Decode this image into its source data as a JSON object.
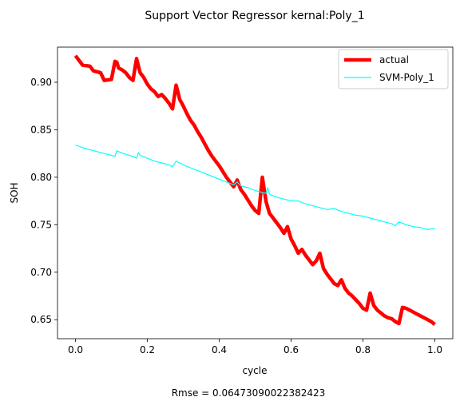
{
  "chart_data": {
    "type": "line",
    "title": "Support Vector Regressor kernal:Poly_1",
    "xlabel": "cycle",
    "ylabel": "SOH",
    "footer": "Rmse = 0.06473090022382423",
    "xlim": [
      -0.05,
      1.05
    ],
    "ylim": [
      0.63,
      0.937
    ],
    "xticks": [
      0.0,
      0.2,
      0.4,
      0.6,
      0.8,
      1.0
    ],
    "xtick_labels": [
      "0.0",
      "0.2",
      "0.4",
      "0.6",
      "0.8",
      "1.0"
    ],
    "yticks": [
      0.65,
      0.7,
      0.75,
      0.8,
      0.85,
      0.9
    ],
    "ytick_labels": [
      "0.65",
      "0.70",
      "0.75",
      "0.80",
      "0.85",
      "0.90"
    ],
    "grid": false,
    "legend_position": "top-right",
    "series": [
      {
        "name": "actual",
        "color": "#ff0000",
        "x": [
          0.0,
          0.02,
          0.04,
          0.05,
          0.07,
          0.08,
          0.1,
          0.11,
          0.115,
          0.12,
          0.13,
          0.14,
          0.15,
          0.16,
          0.17,
          0.175,
          0.18,
          0.19,
          0.2,
          0.21,
          0.22,
          0.23,
          0.24,
          0.25,
          0.26,
          0.27,
          0.28,
          0.285,
          0.29,
          0.3,
          0.31,
          0.32,
          0.33,
          0.34,
          0.35,
          0.36,
          0.37,
          0.38,
          0.39,
          0.4,
          0.41,
          0.42,
          0.43,
          0.44,
          0.45,
          0.46,
          0.47,
          0.48,
          0.49,
          0.5,
          0.51,
          0.52,
          0.53,
          0.535,
          0.54,
          0.55,
          0.56,
          0.57,
          0.58,
          0.59,
          0.6,
          0.61,
          0.62,
          0.63,
          0.64,
          0.65,
          0.66,
          0.67,
          0.68,
          0.69,
          0.7,
          0.71,
          0.72,
          0.73,
          0.74,
          0.75,
          0.76,
          0.77,
          0.78,
          0.79,
          0.8,
          0.81,
          0.82,
          0.83,
          0.84,
          0.85,
          0.86,
          0.87,
          0.88,
          0.89,
          0.9,
          0.91,
          0.92,
          0.93,
          0.94,
          0.95,
          0.96,
          0.97,
          0.98,
          0.99,
          1.0
        ],
        "y": [
          0.928,
          0.918,
          0.917,
          0.912,
          0.91,
          0.902,
          0.903,
          0.922,
          0.921,
          0.915,
          0.913,
          0.91,
          0.905,
          0.902,
          0.925,
          0.917,
          0.91,
          0.905,
          0.898,
          0.893,
          0.89,
          0.885,
          0.887,
          0.883,
          0.878,
          0.872,
          0.897,
          0.89,
          0.882,
          0.875,
          0.867,
          0.86,
          0.855,
          0.848,
          0.842,
          0.835,
          0.828,
          0.822,
          0.817,
          0.812,
          0.806,
          0.8,
          0.795,
          0.79,
          0.797,
          0.787,
          0.782,
          0.776,
          0.77,
          0.765,
          0.762,
          0.8,
          0.775,
          0.768,
          0.762,
          0.757,
          0.752,
          0.747,
          0.741,
          0.748,
          0.735,
          0.728,
          0.72,
          0.724,
          0.718,
          0.713,
          0.708,
          0.712,
          0.72,
          0.704,
          0.698,
          0.693,
          0.688,
          0.686,
          0.692,
          0.683,
          0.678,
          0.675,
          0.671,
          0.667,
          0.662,
          0.66,
          0.678,
          0.665,
          0.66,
          0.657,
          0.654,
          0.652,
          0.651,
          0.648,
          0.646,
          0.663,
          0.662,
          0.66,
          0.658,
          0.656,
          0.654,
          0.652,
          0.65,
          0.648,
          0.645
        ]
      },
      {
        "name": "SVM-Poly_1",
        "color": "#00ffff",
        "x": [
          0.0,
          0.02,
          0.04,
          0.06,
          0.08,
          0.1,
          0.11,
          0.115,
          0.12,
          0.14,
          0.16,
          0.17,
          0.175,
          0.18,
          0.2,
          0.22,
          0.24,
          0.26,
          0.27,
          0.28,
          0.3,
          0.32,
          0.34,
          0.36,
          0.38,
          0.4,
          0.42,
          0.44,
          0.45,
          0.46,
          0.48,
          0.5,
          0.52,
          0.53,
          0.535,
          0.54,
          0.56,
          0.58,
          0.6,
          0.62,
          0.64,
          0.66,
          0.68,
          0.7,
          0.72,
          0.74,
          0.76,
          0.78,
          0.8,
          0.82,
          0.84,
          0.86,
          0.88,
          0.89,
          0.9,
          0.92,
          0.94,
          0.96,
          0.98,
          1.0
        ],
        "y": [
          0.834,
          0.831,
          0.829,
          0.827,
          0.825,
          0.823,
          0.822,
          0.828,
          0.827,
          0.824,
          0.822,
          0.82,
          0.826,
          0.823,
          0.82,
          0.817,
          0.815,
          0.813,
          0.811,
          0.817,
          0.813,
          0.81,
          0.807,
          0.804,
          0.801,
          0.798,
          0.795,
          0.792,
          0.795,
          0.791,
          0.789,
          0.786,
          0.784,
          0.783,
          0.789,
          0.782,
          0.779,
          0.777,
          0.775,
          0.775,
          0.772,
          0.77,
          0.768,
          0.766,
          0.767,
          0.764,
          0.762,
          0.76,
          0.759,
          0.757,
          0.755,
          0.753,
          0.751,
          0.749,
          0.753,
          0.75,
          0.748,
          0.747,
          0.745,
          0.746
        ]
      }
    ]
  }
}
